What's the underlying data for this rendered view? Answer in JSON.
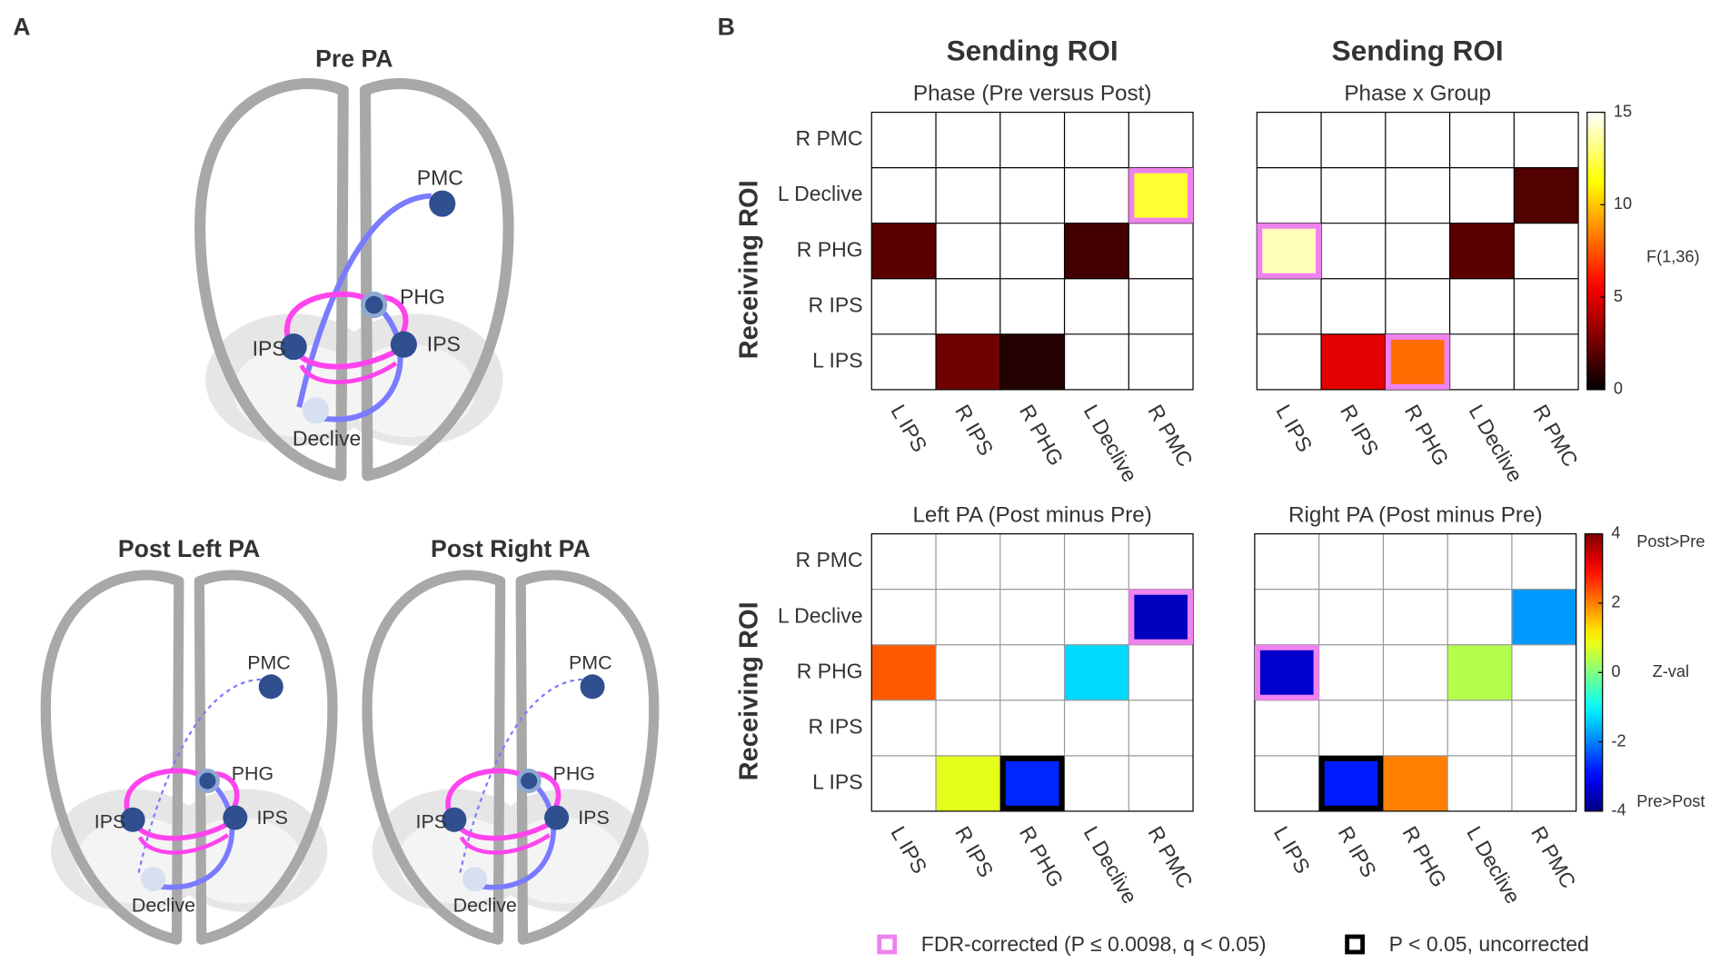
{
  "panel_labels": [
    "A",
    "B"
  ],
  "panel_a": {
    "diagrams": [
      {
        "title": "Pre PA",
        "nodes": [
          "PMC",
          "PHG",
          "IPS",
          "IPS",
          "Declive"
        ]
      },
      {
        "title": "Post Left PA",
        "nodes": [
          "PMC",
          "PHG",
          "IPS",
          "IPS",
          "Declive"
        ]
      },
      {
        "title": "Post Right PA",
        "nodes": [
          "PMC",
          "PHG",
          "IPS",
          "IPS",
          "Declive"
        ]
      }
    ]
  },
  "legend": [
    {
      "label": "FDR-corrected (P ≤ 0.0098, q < 0.05)",
      "color": "#ee82ee"
    },
    {
      "label": "P < 0.05, uncorrected",
      "color": "#000000"
    }
  ],
  "chart_data": [
    {
      "type": "heatmap",
      "heading": "Sending ROI",
      "title": "Phase (Pre versus Post)",
      "ylabel": "Receiving ROI",
      "x_categories": [
        "L IPS",
        "R IPS",
        "R PHG",
        "L Declive",
        "R PMC"
      ],
      "y_categories": [
        "R PMC",
        "L Declive",
        "R PHG",
        "R IPS",
        "L IPS"
      ],
      "values": [
        [
          null,
          null,
          null,
          null,
          null
        ],
        [
          null,
          null,
          null,
          null,
          12
        ],
        [
          2,
          null,
          null,
          1.5,
          null
        ],
        [
          null,
          null,
          null,
          null,
          null
        ],
        [
          null,
          2.5,
          0.8,
          null,
          null
        ]
      ],
      "highlights": [
        {
          "row": 1,
          "col": 4,
          "legend": 0
        }
      ],
      "colormap": "hot",
      "zlim": [
        0,
        15
      ],
      "grid_color": "#000000"
    },
    {
      "type": "heatmap",
      "heading": "Sending ROI",
      "title": "Phase x Group",
      "x_categories": [
        "L IPS",
        "R IPS",
        "R PHG",
        "L Declive",
        "R PMC"
      ],
      "values": [
        [
          null,
          null,
          null,
          null,
          null
        ],
        [
          null,
          null,
          null,
          null,
          1.8
        ],
        [
          14,
          null,
          null,
          2,
          null
        ],
        [
          null,
          null,
          null,
          null,
          null
        ],
        [
          null,
          5,
          8,
          null,
          null
        ]
      ],
      "highlights": [
        {
          "row": 2,
          "col": 0,
          "legend": 0
        },
        {
          "row": 4,
          "col": 2,
          "legend": 0
        }
      ],
      "colormap": "hot",
      "zlim": [
        0,
        15
      ],
      "zticks": [
        0,
        5,
        10,
        15
      ],
      "colorbar_labels": [
        "F(1,36)"
      ],
      "grid_color": "#000000"
    },
    {
      "type": "heatmap",
      "title": "Left PA (Post minus Pre)",
      "ylabel": "Receiving ROI",
      "x_categories": [
        "L IPS",
        "R IPS",
        "R PHG",
        "L Declive",
        "R PMC"
      ],
      "y_categories": [
        "R PMC",
        "L Declive",
        "R PHG",
        "R IPS",
        "L IPS"
      ],
      "values": [
        [
          null,
          null,
          null,
          null,
          null
        ],
        [
          null,
          null,
          null,
          null,
          -3.5
        ],
        [
          2.3,
          null,
          null,
          -1.3,
          null
        ],
        [
          null,
          null,
          null,
          null,
          null
        ],
        [
          null,
          0.8,
          -2.7,
          null,
          null
        ]
      ],
      "highlights": [
        {
          "row": 1,
          "col": 4,
          "legend": 0
        },
        {
          "row": 4,
          "col": 2,
          "legend": 1
        }
      ],
      "colormap": "jet",
      "zlim": [
        -4,
        4
      ],
      "grid_color": "#999999"
    },
    {
      "type": "heatmap",
      "title": "Right PA (Post minus Pre)",
      "x_categories": [
        "L IPS",
        "R IPS",
        "R PHG",
        "L Declive",
        "R PMC"
      ],
      "values": [
        [
          null,
          null,
          null,
          null,
          null
        ],
        [
          null,
          null,
          null,
          null,
          -1.8
        ],
        [
          -3.4,
          null,
          null,
          0.4,
          null
        ],
        [
          null,
          null,
          null,
          null,
          null
        ],
        [
          null,
          -2.8,
          2,
          null,
          null
        ]
      ],
      "highlights": [
        {
          "row": 2,
          "col": 0,
          "legend": 0
        },
        {
          "row": 4,
          "col": 1,
          "legend": 1
        }
      ],
      "colormap": "jet",
      "zlim": [
        -4,
        4
      ],
      "zticks": [
        -4,
        -2,
        0,
        2,
        4
      ],
      "colorbar_labels": [
        "Post>Pre",
        "Z-val",
        "Pre>Post"
      ],
      "grid_color": "#999999"
    }
  ]
}
